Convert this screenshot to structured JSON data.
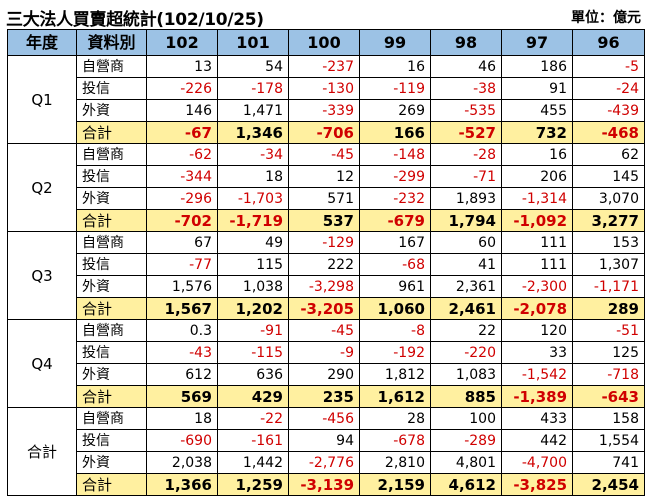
{
  "title": "三大法人買賣超統計(102/10/25)",
  "unit": "單位：億元",
  "headers": [
    "年度",
    "資料別",
    "102",
    "101",
    "100",
    "99",
    "98",
    "97",
    "96"
  ],
  "colors": {
    "header_bg": "#9cc2e5",
    "total_bg": "#fff0a0",
    "negative": "#d00000"
  },
  "groups": [
    {
      "label": "Q1",
      "rows": [
        {
          "cat": "自營商",
          "values": [
            "13",
            "54",
            "-237",
            "16",
            "46",
            "186",
            "-5"
          ]
        },
        {
          "cat": "投信",
          "values": [
            "-226",
            "-178",
            "-130",
            "-119",
            "-38",
            "91",
            "-24"
          ]
        },
        {
          "cat": "外資",
          "values": [
            "146",
            "1,471",
            "-339",
            "269",
            "-535",
            "455",
            "-439"
          ]
        },
        {
          "cat": "合計",
          "values": [
            "-67",
            "1,346",
            "-706",
            "166",
            "-527",
            "732",
            "-468"
          ]
        }
      ]
    },
    {
      "label": "Q2",
      "rows": [
        {
          "cat": "自營商",
          "values": [
            "-62",
            "-34",
            "-45",
            "-148",
            "-28",
            "16",
            "62"
          ]
        },
        {
          "cat": "投信",
          "values": [
            "-344",
            "18",
            "12",
            "-299",
            "-71",
            "206",
            "145"
          ]
        },
        {
          "cat": "外資",
          "values": [
            "-296",
            "-1,703",
            "571",
            "-232",
            "1,893",
            "-1,314",
            "3,070"
          ]
        },
        {
          "cat": "合計",
          "values": [
            "-702",
            "-1,719",
            "537",
            "-679",
            "1,794",
            "-1,092",
            "3,277"
          ]
        }
      ]
    },
    {
      "label": "Q3",
      "rows": [
        {
          "cat": "自營商",
          "values": [
            "67",
            "49",
            "-129",
            "167",
            "60",
            "111",
            "153"
          ]
        },
        {
          "cat": "投信",
          "values": [
            "-77",
            "115",
            "222",
            "-68",
            "41",
            "111",
            "1,307"
          ]
        },
        {
          "cat": "外資",
          "values": [
            "1,576",
            "1,038",
            "-3,298",
            "961",
            "2,361",
            "-2,300",
            "-1,171"
          ]
        },
        {
          "cat": "合計",
          "values": [
            "1,567",
            "1,202",
            "-3,205",
            "1,060",
            "2,461",
            "-2,078",
            "289"
          ]
        }
      ]
    },
    {
      "label": "Q4",
      "rows": [
        {
          "cat": "自營商",
          "values": [
            "0.3",
            "-91",
            "-45",
            "-8",
            "22",
            "120",
            "-51"
          ]
        },
        {
          "cat": "投信",
          "values": [
            "-43",
            "-115",
            "-9",
            "-192",
            "-220",
            "33",
            "125"
          ]
        },
        {
          "cat": "外資",
          "values": [
            "612",
            "636",
            "290",
            "1,812",
            "1,083",
            "-1,542",
            "-718"
          ]
        },
        {
          "cat": "合計",
          "values": [
            "569",
            "429",
            "235",
            "1,612",
            "885",
            "-1,389",
            "-643"
          ]
        }
      ]
    },
    {
      "label": "合計",
      "rows": [
        {
          "cat": "自營商",
          "values": [
            "18",
            "-22",
            "-456",
            "28",
            "100",
            "433",
            "158"
          ]
        },
        {
          "cat": "投信",
          "values": [
            "-690",
            "-161",
            "94",
            "-678",
            "-289",
            "442",
            "1,554"
          ]
        },
        {
          "cat": "外資",
          "values": [
            "2,038",
            "1,442",
            "-2,776",
            "2,810",
            "4,801",
            "-4,700",
            "741"
          ]
        },
        {
          "cat": "合計",
          "values": [
            "1,366",
            "1,259",
            "-3,139",
            "2,159",
            "4,612",
            "-3,825",
            "2,454"
          ]
        }
      ]
    }
  ]
}
